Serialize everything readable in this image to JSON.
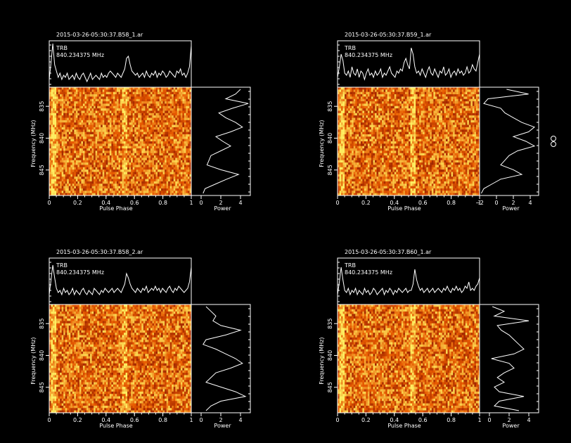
{
  "panels": [
    {
      "title": "2015-03-26-05:30:37.B58_1.ar",
      "source": "TRB",
      "freq_label": "840.234375 MHz",
      "xlabel": "Pulse Phase",
      "ylabel": "Frequency (MHz)",
      "power_label": "Power",
      "x_ticks": [
        "0",
        "0.2",
        "0.4",
        "0.6",
        "0.8",
        "1"
      ],
      "freq_ticks": [
        "835",
        "840",
        "845"
      ],
      "power_ticks": [
        "0",
        "2",
        "4"
      ]
    },
    {
      "title": "2015-03-26-05:30:37.B59_1.ar",
      "source": "TRB",
      "freq_label": "840.234375 MHz",
      "xlabel": "Pulse Phase",
      "ylabel": "Frequency (MHz)",
      "power_label": "Power",
      "x_ticks": [
        "0",
        "0.2",
        "0.4",
        "0.6",
        "0.8",
        "1"
      ],
      "freq_ticks": [
        "835",
        "840",
        "845"
      ],
      "power_ticks": [
        "−2",
        "0",
        "2",
        "4"
      ]
    },
    {
      "title": "2015-03-26-05:30:37.B58_2.ar",
      "source": "TRB",
      "freq_label": "840.234375 MHz",
      "xlabel": "Pulse Phase",
      "ylabel": "Frequency (MHz)",
      "power_label": "Power",
      "x_ticks": [
        "0",
        "0.2",
        "0.4",
        "0.6",
        "0.8",
        "1"
      ],
      "freq_ticks": [
        "835",
        "840",
        "845"
      ],
      "power_ticks": [
        "0",
        "2",
        "4"
      ]
    },
    {
      "title": "2015-03-26-05:30:37.B60_1.ar",
      "source": "TRB",
      "freq_label": "840.234375 MHz",
      "xlabel": "Pulse Phase",
      "ylabel": "Frequency (MHz)",
      "power_label": "Power",
      "x_ticks": [
        "0",
        "0.2",
        "0.4",
        "0.6",
        "0.8",
        "1"
      ],
      "freq_ticks": [
        "835",
        "840",
        "845"
      ],
      "power_ticks": [
        "0",
        "2",
        "4"
      ]
    }
  ],
  "chart_data": [
    {
      "type": "line",
      "title": "2015-03-26-05:30:37.B58_1.ar",
      "xlabel": "Pulse Phase",
      "ylabel": "Frequency (MHz)",
      "profile": [
        0.15,
        0.55,
        1.0,
        0.5,
        0.35,
        0.2,
        0.3,
        0.15,
        0.25,
        0.2,
        0.3,
        0.15,
        0.2,
        0.25,
        0.15,
        0.3,
        0.2,
        0.15,
        0.25,
        0.3,
        0.2,
        0.1,
        0.2,
        0.3,
        0.15,
        0.2,
        0.25,
        0.2,
        0.15,
        0.3,
        0.2,
        0.25,
        0.2,
        0.3,
        0.35,
        0.3,
        0.25,
        0.2,
        0.3,
        0.25,
        0.2,
        0.3,
        0.4,
        0.65,
        0.7,
        0.5,
        0.35,
        0.3,
        0.25,
        0.3,
        0.2,
        0.25,
        0.3,
        0.2,
        0.35,
        0.25,
        0.2,
        0.3,
        0.25,
        0.35,
        0.2,
        0.3,
        0.25,
        0.35,
        0.3,
        0.2,
        0.25,
        0.35,
        0.3,
        0.25,
        0.2,
        0.35,
        0.3,
        0.4,
        0.25,
        0.3,
        0.2,
        0.3,
        0.45,
        0.95
      ],
      "freq_power": [
        4.0,
        3.5,
        2.5,
        4.8,
        3.2,
        1.8,
        2.5,
        3.5,
        4.2,
        3.0,
        1.5,
        2.2,
        3.0,
        2.0,
        1.0,
        0.8,
        0.6,
        2.0,
        3.8,
        2.6,
        1.5,
        0.4,
        0.2
      ],
      "freq_range": [
        832,
        849
      ],
      "power_range": [
        -1,
        5
      ]
    },
    {
      "type": "line",
      "title": "2015-03-26-05:30:37.B59_1.ar",
      "xlabel": "Pulse Phase",
      "ylabel": "Frequency (MHz)",
      "profile": [
        0.2,
        0.45,
        0.75,
        0.6,
        0.3,
        0.25,
        0.35,
        0.2,
        0.45,
        0.3,
        0.25,
        0.4,
        0.2,
        0.35,
        0.3,
        0.15,
        0.3,
        0.4,
        0.25,
        0.3,
        0.2,
        0.35,
        0.25,
        0.3,
        0.4,
        0.2,
        0.3,
        0.25,
        0.35,
        0.45,
        0.3,
        0.25,
        0.2,
        0.35,
        0.3,
        0.4,
        0.35,
        0.55,
        0.65,
        0.5,
        0.4,
        0.9,
        0.75,
        0.45,
        0.3,
        0.35,
        0.25,
        0.4,
        0.3,
        0.2,
        0.35,
        0.45,
        0.3,
        0.25,
        0.4,
        0.3,
        0.2,
        0.35,
        0.3,
        0.45,
        0.25,
        0.3,
        0.4,
        0.2,
        0.3,
        0.35,
        0.25,
        0.4,
        0.3,
        0.35,
        0.25,
        0.3,
        0.45,
        0.3,
        0.35,
        0.5,
        0.4,
        0.35,
        0.55,
        0.75
      ],
      "freq_power": [
        1.2,
        3.8,
        -1.0,
        -1.5,
        0.5,
        1.0,
        2.0,
        3.0,
        4.5,
        3.8,
        2.0,
        3.5,
        4.5,
        2.5,
        1.5,
        1.0,
        0.5,
        2.0,
        3.0,
        0.5,
        -0.5,
        -1.5,
        -1.8
      ],
      "freq_range": [
        832,
        849
      ],
      "power_range": [
        -2,
        5
      ]
    },
    {
      "type": "line",
      "title": "2015-03-26-05:30:37.B58_2.ar",
      "xlabel": "Pulse Phase",
      "ylabel": "Frequency (MHz)",
      "profile": [
        0.2,
        0.55,
        0.9,
        0.6,
        0.35,
        0.25,
        0.3,
        0.2,
        0.35,
        0.25,
        0.3,
        0.2,
        0.25,
        0.35,
        0.2,
        0.3,
        0.25,
        0.2,
        0.3,
        0.35,
        0.25,
        0.2,
        0.3,
        0.25,
        0.2,
        0.35,
        0.3,
        0.25,
        0.2,
        0.3,
        0.25,
        0.35,
        0.3,
        0.25,
        0.3,
        0.35,
        0.25,
        0.3,
        0.35,
        0.3,
        0.25,
        0.35,
        0.45,
        0.7,
        0.6,
        0.45,
        0.35,
        0.3,
        0.25,
        0.35,
        0.3,
        0.25,
        0.35,
        0.3,
        0.4,
        0.25,
        0.3,
        0.35,
        0.3,
        0.4,
        0.3,
        0.35,
        0.25,
        0.35,
        0.3,
        0.25,
        0.35,
        0.4,
        0.3,
        0.25,
        0.35,
        0.3,
        0.4,
        0.35,
        0.3,
        0.25,
        0.3,
        0.35,
        0.5,
        0.85
      ],
      "freq_power": [
        0.5,
        1.0,
        1.5,
        1.2,
        2.0,
        4.0,
        2.5,
        0.5,
        0.2,
        1.5,
        2.5,
        3.5,
        4.2,
        3.0,
        1.5,
        1.0,
        0.5,
        2.0,
        3.5,
        4.5,
        2.0,
        1.0,
        0.5
      ],
      "freq_range": [
        832,
        849
      ],
      "power_range": [
        -1,
        5
      ]
    },
    {
      "type": "line",
      "title": "2015-03-26-05:30:37.B60_1.ar",
      "xlabel": "Pulse Phase",
      "ylabel": "Frequency (MHz)",
      "profile": [
        0.2,
        0.5,
        0.85,
        0.55,
        0.3,
        0.25,
        0.35,
        0.2,
        0.3,
        0.25,
        0.35,
        0.2,
        0.3,
        0.25,
        0.2,
        0.35,
        0.25,
        0.3,
        0.2,
        0.25,
        0.35,
        0.3,
        0.2,
        0.25,
        0.3,
        0.35,
        0.2,
        0.3,
        0.25,
        0.35,
        0.3,
        0.2,
        0.3,
        0.25,
        0.35,
        0.3,
        0.25,
        0.3,
        0.35,
        0.25,
        0.3,
        0.3,
        0.45,
        0.8,
        0.55,
        0.4,
        0.3,
        0.35,
        0.25,
        0.3,
        0.35,
        0.25,
        0.3,
        0.35,
        0.25,
        0.3,
        0.35,
        0.3,
        0.25,
        0.35,
        0.3,
        0.4,
        0.3,
        0.25,
        0.35,
        0.3,
        0.4,
        0.3,
        0.35,
        0.25,
        0.3,
        0.4,
        0.35,
        0.5,
        0.3,
        0.35,
        0.3,
        0.4,
        0.45,
        0.6
      ],
      "freq_power": [
        0.3,
        1.5,
        0.5,
        4.0,
        0.8,
        1.2,
        2.0,
        2.5,
        3.0,
        3.5,
        2.5,
        0.2,
        2.0,
        2.5,
        1.5,
        0.8,
        1.5,
        0.5,
        1.0,
        3.5,
        1.0,
        0.5,
        3.0
      ],
      "freq_range": [
        832,
        849
      ],
      "power_range": [
        -1,
        5
      ]
    }
  ],
  "colors": {
    "background": "#000000",
    "axes": "#ffffff",
    "cmap_low": "#7a0a00",
    "cmap_mid": "#e85a00",
    "cmap_high": "#ffee60"
  },
  "side_icon": "double-circle-icon"
}
